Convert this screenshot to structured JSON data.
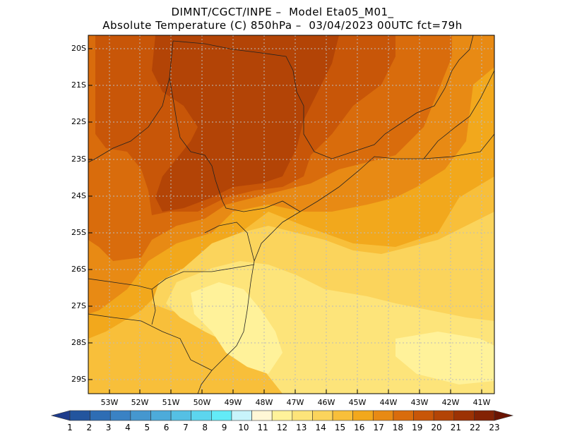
{
  "header": {
    "line1": "DIMNT/CGCT/INPE –  Model Eta05_M01_",
    "line2": "Absolute Temperature (C) 850hPa –  03/04/2023 00UTC fct=79h"
  },
  "axes": {
    "lat_labels": [
      "20S",
      "21S",
      "22S",
      "23S",
      "24S",
      "25S",
      "26S",
      "27S",
      "28S",
      "29S"
    ],
    "lon_labels": [
      "53W",
      "52W",
      "51W",
      "50W",
      "49W",
      "48W",
      "47W",
      "46W",
      "45W",
      "44W",
      "43W",
      "42W",
      "41W"
    ]
  },
  "colorbar": {
    "labels": [
      "1",
      "2",
      "3",
      "4",
      "5",
      "6",
      "7",
      "8",
      "9",
      "10",
      "11",
      "12",
      "13",
      "14",
      "15",
      "16",
      "17",
      "18",
      "19",
      "20",
      "21",
      "22",
      "23"
    ],
    "colors": [
      "#1e3c8c",
      "#23559e",
      "#2e6db4",
      "#3a82c4",
      "#4597cf",
      "#4dabda",
      "#55c0e4",
      "#5cd5ee",
      "#63ebf7",
      "#c8f4fb",
      "#fff7d6",
      "#fff29a",
      "#fde47a",
      "#fbd45c",
      "#f8bf3a",
      "#f2a81c",
      "#e88a14",
      "#d96c0c",
      "#c85608",
      "#b34406",
      "#9c3204",
      "#832204",
      "#6a1402"
    ]
  },
  "map_fields": {
    "colors_used": {
      "t13": "#fff29a",
      "t14": "#fde47a",
      "t15": "#fbd45c",
      "t16": "#f8bf3a",
      "t17": "#f2a81c",
      "t18": "#e88a14",
      "t19": "#d96c0c",
      "t20": "#c85608",
      "t21": "#b34406"
    }
  }
}
